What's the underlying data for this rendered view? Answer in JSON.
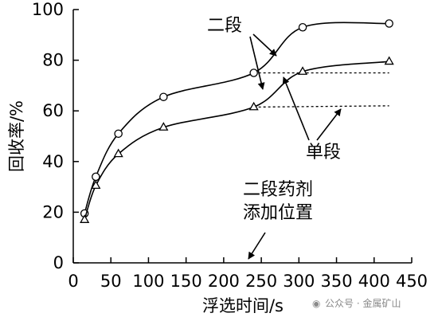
{
  "chart_data": {
    "type": "line",
    "title": "",
    "xlabel": "浮选时间/s",
    "ylabel": "回收率/%",
    "xlim": [
      0,
      450
    ],
    "ylim": [
      0,
      100
    ],
    "xticks": [
      0,
      50,
      100,
      150,
      200,
      250,
      300,
      350,
      400,
      450
    ],
    "yticks": [
      0,
      20,
      40,
      60,
      80,
      100
    ],
    "grid": false,
    "legend": "none",
    "series": [
      {
        "name": "二段",
        "marker": "circle",
        "x": [
          15,
          30,
          60,
          120,
          240,
          305,
          420
        ],
        "y": [
          19.5,
          34,
          51,
          65.5,
          75,
          93,
          94.5
        ]
      },
      {
        "name": "单段",
        "marker": "triangle",
        "x": [
          15,
          30,
          60,
          120,
          240,
          305,
          420
        ],
        "y": [
          17,
          30.5,
          43,
          53.5,
          61.5,
          75.5,
          79.5
        ]
      }
    ],
    "reference_lines": [
      {
        "from": [
          240,
          75
        ],
        "to": [
          420,
          75
        ]
      },
      {
        "from": [
          240,
          61.5
        ],
        "to": [
          420,
          62
        ]
      }
    ],
    "annotations": {
      "two_stage": "二段",
      "single_stage": "单段",
      "dosing_line1": "二段药剂",
      "dosing_line2": "添加位置"
    }
  },
  "watermark": "公众号 · 金属矿山"
}
